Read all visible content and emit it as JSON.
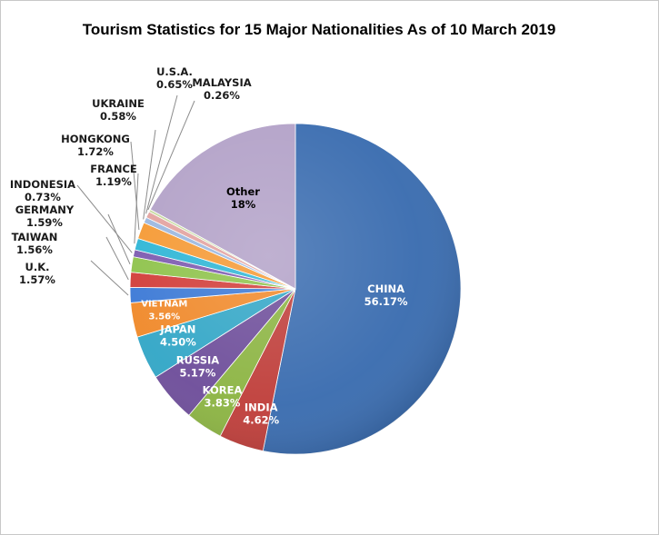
{
  "chart_data": {
    "type": "pie",
    "title": "Tourism Statistics for 15 Major Nationalities As of 10 March 2019",
    "slices": [
      {
        "name": "CHINA",
        "value_label": "56.17%",
        "value": 56.17,
        "color": "#3b6db0"
      },
      {
        "name": "INDIA",
        "value_label": "4.62%",
        "value": 4.62,
        "color": "#c0403c"
      },
      {
        "name": "KOREA",
        "value_label": "3.83%",
        "value": 3.83,
        "color": "#8db544"
      },
      {
        "name": "RUSSIA",
        "value_label": "5.17%",
        "value": 5.17,
        "color": "#6f4f9b"
      },
      {
        "name": "JAPAN",
        "value_label": "4.50%",
        "value": 4.5,
        "color": "#34a7c7"
      },
      {
        "name": "VIETNAM",
        "value_label": "3.56%",
        "value": 3.56,
        "color": "#f08a2c"
      },
      {
        "name": "U.K.",
        "value_label": "1.57%",
        "value": 1.57,
        "color": "#3d7ad6"
      },
      {
        "name": "TAIWAN",
        "value_label": "1.56%",
        "value": 1.56,
        "color": "#d23e3a"
      },
      {
        "name": "GERMANY",
        "value_label": "1.59%",
        "value": 1.59,
        "color": "#8fc34c"
      },
      {
        "name": "INDONESIA",
        "value_label": "0.73%",
        "value": 0.73,
        "color": "#7d5bb0"
      },
      {
        "name": "FRANCE",
        "value_label": "1.19%",
        "value": 1.19,
        "color": "#2fb6d6"
      },
      {
        "name": "HONGKONG",
        "value_label": "1.72%",
        "value": 1.72,
        "color": "#f59a35"
      },
      {
        "name": "UKRAINE",
        "value_label": "0.58%",
        "value": 0.58,
        "color": "#9cb8e0"
      },
      {
        "name": "U.S.A.",
        "value_label": "0.65%",
        "value": 0.65,
        "color": "#e3a3a0"
      },
      {
        "name": "MALAYSIA",
        "value_label": "0.26%",
        "value": 0.26,
        "color": "#c6da9f"
      },
      {
        "name": "Other",
        "value_label": "18%",
        "value": 18,
        "color": "#b3a2c8"
      }
    ]
  }
}
